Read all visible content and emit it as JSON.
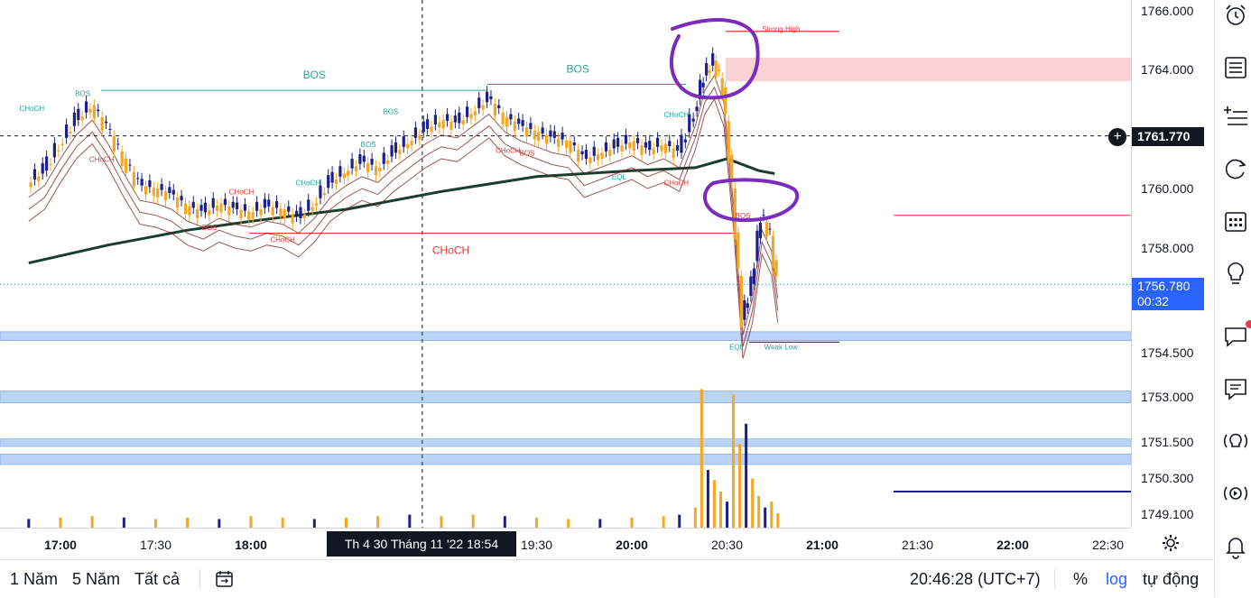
{
  "chart_data": {
    "type": "candlestick",
    "title": "",
    "xlabel": "",
    "ylabel": "",
    "ylim": [
      1748.6,
      1766.4
    ],
    "x_ticks": [
      "17:00",
      "17:30",
      "18:00",
      "18:30",
      "19:00",
      "19:30",
      "20:00",
      "20:30",
      "21:00",
      "21:30",
      "22:00",
      "22:30"
    ],
    "y_ticks": [
      "1766.000",
      "1764.000",
      "1760.000",
      "1758.000",
      "1754.500",
      "1753.000",
      "1751.500",
      "1750.300",
      "1749.100"
    ],
    "y_tick_values": [
      1766.0,
      1764.0,
      1760.0,
      1758.0,
      1754.5,
      1753.0,
      1751.5,
      1750.3,
      1749.1
    ],
    "last_price": "1756.780",
    "last_price_value": 1756.78,
    "countdown": "00:32",
    "crosshair_price": "1761.770",
    "crosshair_price_value": 1761.77,
    "crosshair_time": "Th 4 30 Tháng 11 '22   18:54",
    "crosshair_time_value": "18:54",
    "price_path": [
      [
        "16:50",
        1760.2
      ],
      [
        "16:55",
        1760.6
      ],
      [
        "17:00",
        1761.5
      ],
      [
        "17:05",
        1762.3
      ],
      [
        "17:10",
        1762.8
      ],
      [
        "17:15",
        1762.0
      ],
      [
        "17:20",
        1761.0
      ],
      [
        "17:25",
        1760.1
      ],
      [
        "17:30",
        1760.0
      ],
      [
        "17:35",
        1759.8
      ],
      [
        "17:40",
        1759.4
      ],
      [
        "17:45",
        1759.2
      ],
      [
        "17:50",
        1759.5
      ],
      [
        "17:55",
        1759.3
      ],
      [
        "18:00",
        1759.2
      ],
      [
        "18:05",
        1759.4
      ],
      [
        "18:10",
        1759.3
      ],
      [
        "18:15",
        1759.0
      ],
      [
        "18:20",
        1759.5
      ],
      [
        "18:25",
        1760.2
      ],
      [
        "18:30",
        1760.6
      ],
      [
        "18:35",
        1760.9
      ],
      [
        "18:40",
        1760.7
      ],
      [
        "18:45",
        1761.2
      ],
      [
        "18:50",
        1761.6
      ],
      [
        "18:55",
        1762.0
      ],
      [
        "19:00",
        1762.3
      ],
      [
        "19:05",
        1762.2
      ],
      [
        "19:10",
        1762.6
      ],
      [
        "19:15",
        1763.0
      ],
      [
        "19:20",
        1762.4
      ],
      [
        "19:25",
        1762.1
      ],
      [
        "19:30",
        1761.9
      ],
      [
        "19:35",
        1761.7
      ],
      [
        "19:40",
        1761.6
      ],
      [
        "19:45",
        1761.0
      ],
      [
        "19:50",
        1761.2
      ],
      [
        "19:55",
        1761.4
      ],
      [
        "20:00",
        1761.6
      ],
      [
        "20:05",
        1761.3
      ],
      [
        "20:10",
        1761.5
      ],
      [
        "20:15",
        1761.2
      ],
      [
        "20:20",
        1762.6
      ],
      [
        "20:23",
        1763.8
      ],
      [
        "20:26",
        1764.3
      ],
      [
        "20:29",
        1763.4
      ],
      [
        "20:32",
        1760.0
      ],
      [
        "20:35",
        1755.6
      ],
      [
        "20:38",
        1756.8
      ],
      [
        "20:41",
        1759.1
      ],
      [
        "20:44",
        1758.4
      ],
      [
        "20:46",
        1756.8
      ]
    ],
    "volume_ylim": [
      0,
      100
    ],
    "volume": [
      [
        "16:50",
        6
      ],
      [
        "17:00",
        7
      ],
      [
        "17:10",
        8
      ],
      [
        "17:20",
        7
      ],
      [
        "17:30",
        6
      ],
      [
        "17:40",
        7
      ],
      [
        "17:50",
        6
      ],
      [
        "18:00",
        8
      ],
      [
        "18:10",
        7
      ],
      [
        "18:20",
        6
      ],
      [
        "18:30",
        7
      ],
      [
        "18:40",
        8
      ],
      [
        "18:50",
        9
      ],
      [
        "19:00",
        8
      ],
      [
        "19:10",
        9
      ],
      [
        "19:20",
        8
      ],
      [
        "19:30",
        7
      ],
      [
        "19:40",
        6
      ],
      [
        "19:50",
        6
      ],
      [
        "20:00",
        7
      ],
      [
        "20:10",
        8
      ],
      [
        "20:15",
        9
      ],
      [
        "20:20",
        14
      ],
      [
        "20:22",
        96
      ],
      [
        "20:24",
        40
      ],
      [
        "20:26",
        33
      ],
      [
        "20:28",
        25
      ],
      [
        "20:30",
        18
      ],
      [
        "20:32",
        92
      ],
      [
        "20:34",
        58
      ],
      [
        "20:36",
        72
      ],
      [
        "20:38",
        34
      ],
      [
        "20:40",
        22
      ],
      [
        "20:42",
        14
      ],
      [
        "20:44",
        18
      ],
      [
        "20:46",
        10
      ]
    ],
    "ma_long": [
      [
        "16:50",
        1757.5
      ],
      [
        "17:15",
        1758.1
      ],
      [
        "17:40",
        1758.6
      ],
      [
        "18:00",
        1758.9
      ],
      [
        "18:30",
        1759.3
      ],
      [
        "19:00",
        1759.9
      ],
      [
        "19:30",
        1760.4
      ],
      [
        "20:00",
        1760.6
      ],
      [
        "20:20",
        1760.7
      ],
      [
        "20:30",
        1761.0
      ],
      [
        "20:40",
        1760.6
      ],
      [
        "20:45",
        1760.5
      ]
    ],
    "annotations": [
      {
        "label": "BOS",
        "time": "18:20",
        "price": 1763.7
      },
      {
        "label": "BOS",
        "time": "19:43",
        "price": 1763.9
      },
      {
        "label": "BOS",
        "time": "17:07",
        "price": 1763.1
      },
      {
        "label": "BOS",
        "time": "18:44",
        "price": 1762.5
      },
      {
        "label": "BOS",
        "time": "18:37",
        "price": 1761.4
      },
      {
        "label": "BOS",
        "time": "19:27",
        "price": 1761.1
      },
      {
        "label": "BOS",
        "time": "17:47",
        "price": 1758.6
      },
      {
        "label": "BOS",
        "time": "20:35",
        "price": 1759.0
      },
      {
        "label": "CHoCH",
        "time": "16:51",
        "price": 1762.6
      },
      {
        "label": "CHoCH",
        "time": "17:13",
        "price": 1760.9
      },
      {
        "label": "CHoCH",
        "time": "17:57",
        "price": 1759.8
      },
      {
        "label": "CHoCH",
        "time": "18:10",
        "price": 1758.2
      },
      {
        "label": "CHoCH",
        "time": "18:18",
        "price": 1760.1
      },
      {
        "label": "CHoCH",
        "time": "19:21",
        "price": 1761.2
      },
      {
        "label": "CHoCH",
        "time": "19:03",
        "price": 1757.8
      },
      {
        "label": "CHoCH",
        "time": "20:14",
        "price": 1762.4
      },
      {
        "label": "CHoCH",
        "time": "20:14",
        "price": 1760.1
      },
      {
        "label": "EQL",
        "time": "19:56",
        "price": 1760.3
      },
      {
        "label": "EQL",
        "time": "20:33",
        "price": 1754.6
      },
      {
        "label": "Strong High",
        "time": "20:47",
        "price": 1765.3
      },
      {
        "label": "Weak Low",
        "time": "20:47",
        "price": 1754.6
      }
    ]
  },
  "time_axis": {
    "settings_icon": "gear-icon"
  },
  "bottom_bar": {
    "ranges": [
      "1 Năm",
      "5 Năm",
      "Tất cả"
    ],
    "date_range_icon": "calendar-range-icon",
    "clock": "20:46:28 (UTC+7)",
    "percent": "%",
    "log": "log",
    "auto": "tự động"
  },
  "right_toolbar": {
    "icons": [
      "alarm-clock-icon",
      "watchlist-icon",
      "add-list-icon",
      "refresh-icon",
      "calendar-icon",
      "lightbulb-icon",
      "chat-icon",
      "notes-icon",
      "ideas-stream-icon",
      "live-play-icon",
      "bell-icon"
    ]
  },
  "colors": {
    "bull": "#1c1f8c",
    "bear": "#f5a623",
    "bos": "#26a69a",
    "choch": "#e53935",
    "ma_long": "#1b3d2f",
    "ribbon": "#7b1e1e",
    "zone_red": "#f9d2d6",
    "zone_blue": "#bbd3f7",
    "annotation_purple": "#7b2cbf",
    "last_price": "#2962ff"
  }
}
